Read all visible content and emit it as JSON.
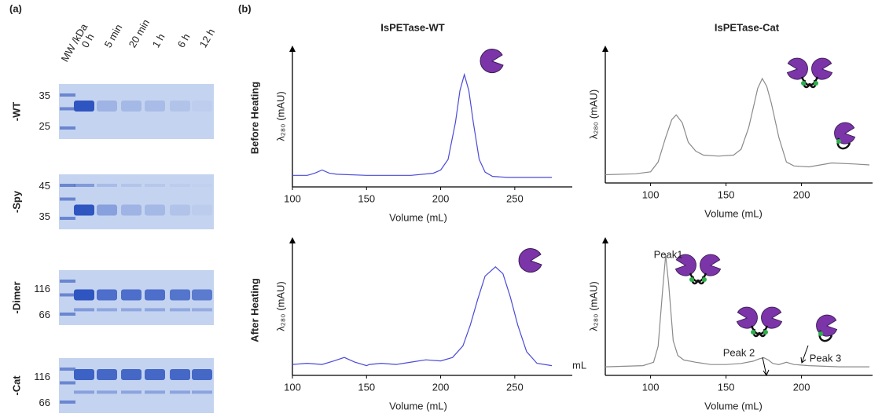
{
  "panel_a": {
    "label": "(a)",
    "lanes": [
      "MW /kDa",
      "0 h",
      "5 min",
      "20 min",
      "1 h",
      "6 h",
      "12 h"
    ],
    "gels": [
      {
        "name": "-WT",
        "markers": [
          35,
          25
        ]
      },
      {
        "name": "-Spy",
        "markers": [
          45,
          35
        ]
      },
      {
        "name": "-Dimer",
        "markers": [
          116,
          66
        ]
      },
      {
        "name": "-Cat",
        "markers": [
          116,
          66
        ]
      }
    ]
  },
  "panel_b": {
    "label": "(b)",
    "rows": [
      "Before Heating",
      "After Heating"
    ],
    "unit_note": "mL"
  },
  "chart_data": [
    {
      "type": "line",
      "title": "IsPETase-WT",
      "x_label": "Volume (mL)",
      "y_label": "λ₂₈₀ (mAU)",
      "xlim": [
        100,
        275
      ],
      "xticks": [
        100,
        150,
        200,
        250
      ],
      "ylim": [
        0,
        100
      ],
      "series": [
        {
          "color": "#4a4ad8",
          "x": [
            100,
            110,
            115,
            120,
            125,
            130,
            150,
            180,
            195,
            200,
            205,
            210,
            213,
            216,
            219,
            222,
            226,
            230,
            235,
            245,
            260,
            275
          ],
          "values": [
            5,
            5,
            7,
            10,
            7,
            6,
            5,
            5,
            7,
            10,
            20,
            55,
            85,
            100,
            85,
            55,
            20,
            8,
            4,
            3,
            3,
            3
          ]
        }
      ]
    },
    {
      "type": "line",
      "title": "IsPETase-Cat",
      "x_label": "Volume (mL)",
      "y_label": "λ₂₈₀ (mAU)",
      "xlim": [
        70,
        245
      ],
      "xticks": [
        100,
        150,
        200
      ],
      "ylim": [
        0,
        100
      ],
      "series": [
        {
          "color": "#8a8a8a",
          "x": [
            70,
            90,
            100,
            105,
            110,
            114,
            117,
            121,
            125,
            130,
            135,
            145,
            155,
            160,
            165,
            168,
            171,
            174,
            177,
            180,
            185,
            190,
            195,
            205,
            220,
            235,
            245
          ],
          "values": [
            2,
            3,
            5,
            15,
            40,
            58,
            63,
            55,
            35,
            26,
            22,
            21,
            22,
            28,
            50,
            70,
            90,
            100,
            92,
            75,
            40,
            15,
            11,
            10,
            14,
            13,
            12
          ]
        }
      ]
    },
    {
      "type": "line",
      "x_label": "Volume (mL)",
      "y_label": "λ₂₈₀ (mAU)",
      "xlim": [
        100,
        275
      ],
      "xticks": [
        100,
        150,
        200,
        250
      ],
      "ylim": [
        0,
        100
      ],
      "series": [
        {
          "color": "#4a4ad8",
          "x": [
            100,
            110,
            120,
            128,
            135,
            142,
            150,
            152,
            160,
            170,
            180,
            190,
            200,
            208,
            215,
            220,
            225,
            230,
            237,
            242,
            247,
            252,
            258,
            265,
            275
          ],
          "values": [
            4,
            5,
            4,
            7,
            10,
            6,
            3,
            4,
            5,
            4,
            6,
            8,
            7,
            10,
            20,
            38,
            60,
            80,
            88,
            82,
            62,
            38,
            15,
            5,
            3
          ]
        }
      ]
    },
    {
      "type": "line",
      "x_label": "Volume (mL)",
      "y_label": "λ₂₈₀ (mAU)",
      "xlim": [
        70,
        245
      ],
      "xticks": [
        100,
        150,
        200
      ],
      "ylim": [
        0,
        100
      ],
      "series": [
        {
          "color": "#8a8a8a",
          "x": [
            70,
            95,
            102,
            105,
            108,
            110,
            112,
            115,
            118,
            122,
            130,
            140,
            150,
            160,
            168,
            172,
            175,
            178,
            181,
            185,
            190,
            195,
            205,
            225,
            245
          ],
          "values": [
            2,
            3,
            6,
            20,
            70,
            100,
            75,
            25,
            12,
            8,
            6,
            4,
            4,
            5,
            7,
            9,
            10,
            8,
            5,
            4,
            6,
            4,
            3,
            2,
            2
          ]
        }
      ],
      "annotations": [
        "Peak1",
        "Peak 2",
        "Peak 3"
      ]
    }
  ]
}
